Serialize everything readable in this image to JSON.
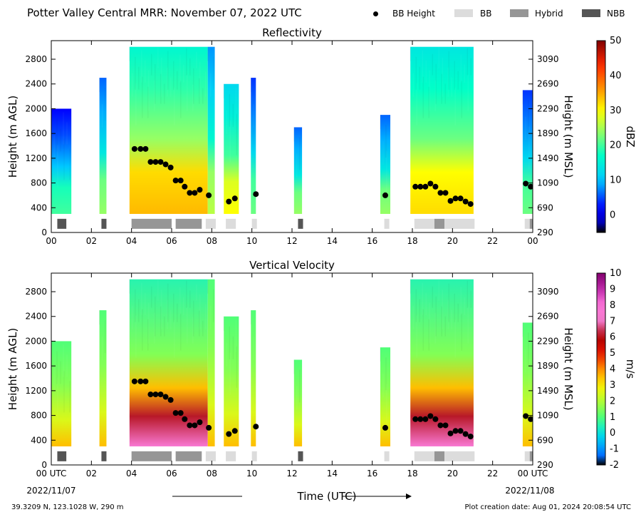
{
  "page": {
    "title": "Potter Valley Central MRR:  November 07, 2022 UTC",
    "legend": [
      {
        "label": "BB Height",
        "kind": "dot",
        "color": "#000000"
      },
      {
        "label": "BB",
        "kind": "box",
        "color": "#dcdcdc"
      },
      {
        "label": "Hybrid",
        "kind": "box",
        "color": "#969696"
      },
      {
        "label": "NBB",
        "kind": "box",
        "color": "#555555"
      }
    ],
    "footer_left": "39.3209 N, 123.1028 W, 290 m",
    "footer_right": "Plot creation date: Aug 01, 2024 20:08:54 UTC",
    "xlabel": "Time (UTC)",
    "date_start": "2022/11/07",
    "date_end": "2022/11/08",
    "x_first_tick": "00 UTC",
    "x_last_tick_top": "00",
    "x_last_tick_bottom": "00 UTC"
  },
  "chart_data": [
    {
      "type": "heatmap",
      "title": "Reflectivity",
      "ylabel": "Height (m AGL)",
      "ylabel_right": "Height (m MSL)",
      "colorbar_label": "dBZ",
      "colorbar_ticks": [
        "0",
        "10",
        "20",
        "30",
        "40",
        "50"
      ],
      "colorbar_range": [
        -5,
        50
      ],
      "colormap": "jet",
      "xlim": [
        0,
        24
      ],
      "ylim": [
        0,
        3100
      ],
      "x_ticks": [
        "00",
        "02",
        "04",
        "06",
        "08",
        "10",
        "12",
        "14",
        "16",
        "18",
        "20",
        "22",
        "00"
      ],
      "y_ticks_left": [
        "0",
        "400",
        "800",
        "1200",
        "1600",
        "2000",
        "2400",
        "2800"
      ],
      "y_ticks_right": [
        "290",
        "690",
        "1090",
        "1490",
        "1890",
        "2290",
        "2690",
        "3090"
      ],
      "echo_segments": [
        {
          "start": 0.0,
          "end": 1.0,
          "top": 2000,
          "dbz": 8
        },
        {
          "start": 2.4,
          "end": 2.75,
          "top": 2500,
          "dbz": 12
        },
        {
          "start": 3.9,
          "end": 7.8,
          "top": 3000,
          "dbz": 22
        },
        {
          "start": 7.8,
          "end": 8.15,
          "top": 3000,
          "dbz": 14
        },
        {
          "start": 8.6,
          "end": 9.35,
          "top": 2400,
          "dbz": 18
        },
        {
          "start": 9.95,
          "end": 10.2,
          "top": 2500,
          "dbz": 10
        },
        {
          "start": 12.1,
          "end": 12.5,
          "top": 1700,
          "dbz": 12
        },
        {
          "start": 16.4,
          "end": 16.9,
          "top": 1900,
          "dbz": 12
        },
        {
          "start": 17.9,
          "end": 21.05,
          "top": 3000,
          "dbz": 20
        },
        {
          "start": 23.5,
          "end": 24.0,
          "top": 2300,
          "dbz": 10
        }
      ],
      "bb_height": {
        "time": [
          4.15,
          4.45,
          4.7,
          4.95,
          5.2,
          5.45,
          5.7,
          5.95,
          6.2,
          6.45,
          6.65,
          6.9,
          7.15,
          7.4,
          7.85,
          8.85,
          9.15,
          10.2,
          16.65,
          18.15,
          18.4,
          18.65,
          18.9,
          19.15,
          19.4,
          19.65,
          19.9,
          20.15,
          20.4,
          20.65,
          20.9,
          23.65,
          23.9
        ],
        "height": [
          1350,
          1350,
          1350,
          1140,
          1140,
          1140,
          1100,
          1050,
          840,
          840,
          740,
          640,
          640,
          690,
          600,
          500,
          550,
          620,
          600,
          740,
          740,
          740,
          790,
          740,
          640,
          640,
          510,
          550,
          550,
          500,
          460,
          790,
          740
        ]
      },
      "bb_type": [
        {
          "start": 0.3,
          "end": 0.75,
          "type": "NBB"
        },
        {
          "start": 2.5,
          "end": 2.75,
          "type": "NBB"
        },
        {
          "start": 4.0,
          "end": 6.0,
          "type": "Hybrid"
        },
        {
          "start": 6.2,
          "end": 7.5,
          "type": "Hybrid"
        },
        {
          "start": 7.7,
          "end": 8.2,
          "type": "BB"
        },
        {
          "start": 8.7,
          "end": 9.2,
          "type": "BB"
        },
        {
          "start": 10.0,
          "end": 10.25,
          "type": "BB"
        },
        {
          "start": 12.3,
          "end": 12.55,
          "type": "NBB"
        },
        {
          "start": 16.6,
          "end": 16.85,
          "type": "BB"
        },
        {
          "start": 18.1,
          "end": 19.1,
          "type": "BB"
        },
        {
          "start": 19.1,
          "end": 19.6,
          "type": "Hybrid"
        },
        {
          "start": 19.6,
          "end": 21.1,
          "type": "BB"
        },
        {
          "start": 23.6,
          "end": 23.85,
          "type": "BB"
        },
        {
          "start": 23.85,
          "end": 24.0,
          "type": "Hybrid"
        }
      ]
    },
    {
      "type": "heatmap",
      "title": "Vertical Velocity",
      "ylabel": "Height (m AGL)",
      "ylabel_right": "Height (m MSL)",
      "colorbar_label": "m/s",
      "colorbar_ticks": [
        "-2",
        "-1",
        "0",
        "1",
        "2",
        "3",
        "4",
        "5",
        "6",
        "7",
        "8",
        "9",
        "10"
      ],
      "colorbar_range": [
        -2,
        10
      ],
      "colormap": "jet-to-magenta",
      "xlim": [
        0,
        24
      ],
      "ylim": [
        0,
        3100
      ],
      "x_ticks": [
        "00 UTC",
        "02",
        "04",
        "06",
        "08",
        "10",
        "12",
        "14",
        "16",
        "18",
        "20",
        "22",
        "00 UTC"
      ],
      "y_ticks_left": [
        "0",
        "400",
        "800",
        "1200",
        "1600",
        "2000",
        "2400",
        "2800"
      ],
      "y_ticks_right": [
        "290",
        "690",
        "1090",
        "1490",
        "1890",
        "2290",
        "2690",
        "3090"
      ]
    }
  ]
}
